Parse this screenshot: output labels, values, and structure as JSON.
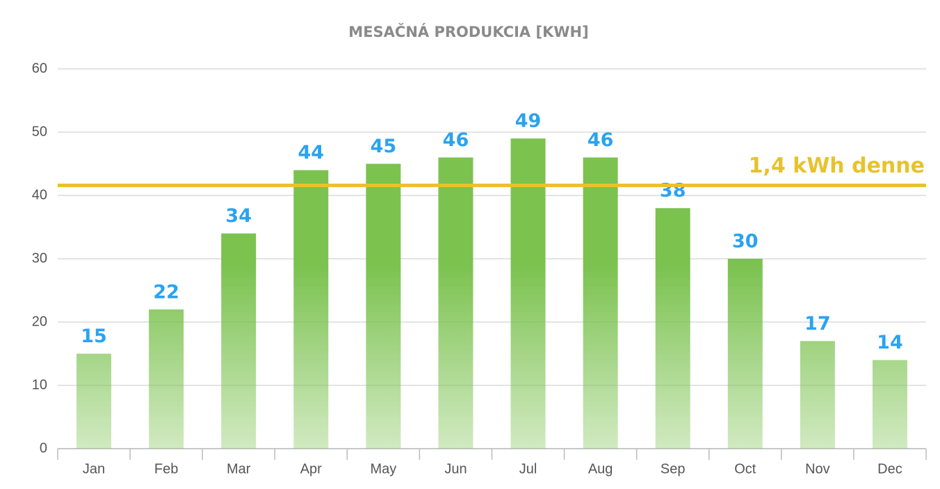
{
  "chart_data": {
    "type": "bar",
    "title": "MESAČNÁ PRODUKCIA [KWH]",
    "categories": [
      "Jan",
      "Feb",
      "Mar",
      "Apr",
      "May",
      "Jun",
      "Jul",
      "Aug",
      "Sep",
      "Oct",
      "Nov",
      "Dec"
    ],
    "values": [
      15,
      22,
      34,
      44,
      45,
      46,
      49,
      46,
      38,
      30,
      17,
      14
    ],
    "color": "#7bc24f",
    "ylim": [
      0,
      60
    ],
    "yticks": [
      0,
      10,
      20,
      30,
      40,
      50,
      60
    ],
    "grid": true,
    "reference_line": {
      "value": 41.6,
      "label": "1,4 kWh denne",
      "color": "#e8c22e"
    }
  }
}
